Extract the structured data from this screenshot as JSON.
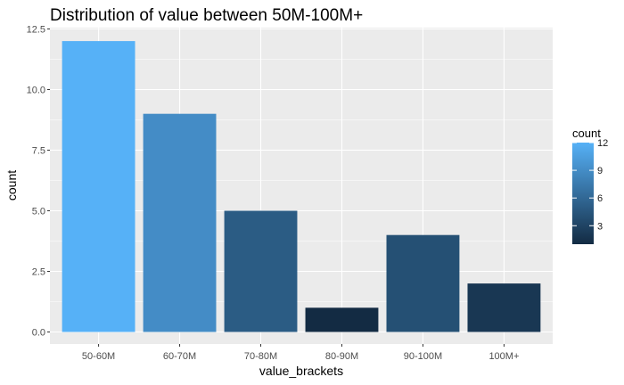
{
  "chart_data": {
    "type": "bar",
    "title": "Distribution of value between 50M-100M+",
    "xlabel": "value_brackets",
    "ylabel": "count",
    "categories": [
      "50-60M",
      "60-70M",
      "70-80M",
      "80-90M",
      "90-100M",
      "100M+"
    ],
    "values": [
      12,
      9,
      5,
      1,
      4,
      2
    ],
    "ylim": [
      0,
      12.5
    ],
    "yticks": [
      0,
      2.5,
      5,
      7.5,
      10,
      12.5
    ],
    "ytick_labels": [
      "0.0",
      "2.5",
      "5.0",
      "7.5",
      "10.0",
      "12.5"
    ],
    "grid": true,
    "legend": {
      "title": "count",
      "placement": "right",
      "type": "continuous-colorbar",
      "ticks": [
        3,
        6,
        9,
        12
      ],
      "tick_labels": [
        "3",
        "6",
        "9",
        "12"
      ],
      "range": [
        1,
        12
      ]
    },
    "colors": {
      "low": "#132B43",
      "high": "#56B1F7",
      "panel_background": "#EBEBEB",
      "grid": "#FFFFFF"
    }
  }
}
